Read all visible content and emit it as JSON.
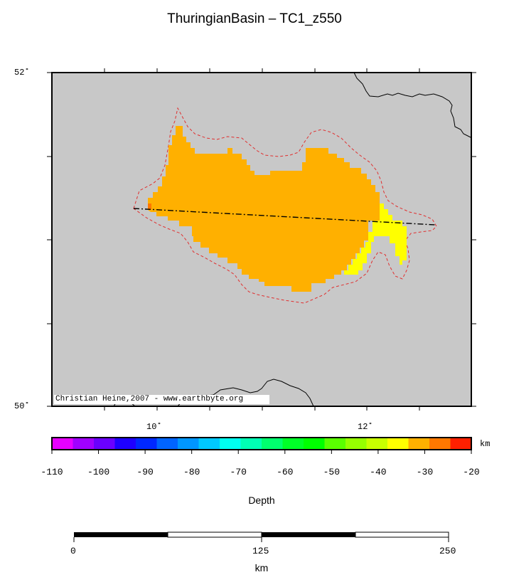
{
  "map": {
    "title": "ThuringianBasin – TC1_z550",
    "lat_labels": [
      "52˚",
      "50˚"
    ],
    "lon_labels": [
      "10˚",
      "12˚"
    ],
    "credit": "Christian Heine,2007 - www.earthbyte.org",
    "background_color": "#c8c8c8",
    "region_color": "#ffb000",
    "shallow_color": "#ffff00",
    "contour_color": "#e03030",
    "profile_line": "dash-dot"
  },
  "colorbar": {
    "unit": "km",
    "label": "Depth",
    "tick_labels": [
      "-110",
      "-100",
      "-90",
      "-80",
      "-70",
      "-60",
      "-50",
      "-40",
      "-30",
      "-20"
    ],
    "colors": [
      "#e600ff",
      "#a000ff",
      "#6a00ff",
      "#1e00ff",
      "#0028ff",
      "#0064ff",
      "#0096ff",
      "#00c8ff",
      "#00fff0",
      "#00ffb4",
      "#00ff6e",
      "#00ff28",
      "#00ff00",
      "#5aff00",
      "#96ff00",
      "#c8ff00",
      "#ffff00",
      "#ffb000",
      "#ff7800",
      "#ff2000"
    ]
  },
  "scalebar": {
    "labels": [
      "0",
      "125",
      "250"
    ],
    "unit": "km"
  }
}
